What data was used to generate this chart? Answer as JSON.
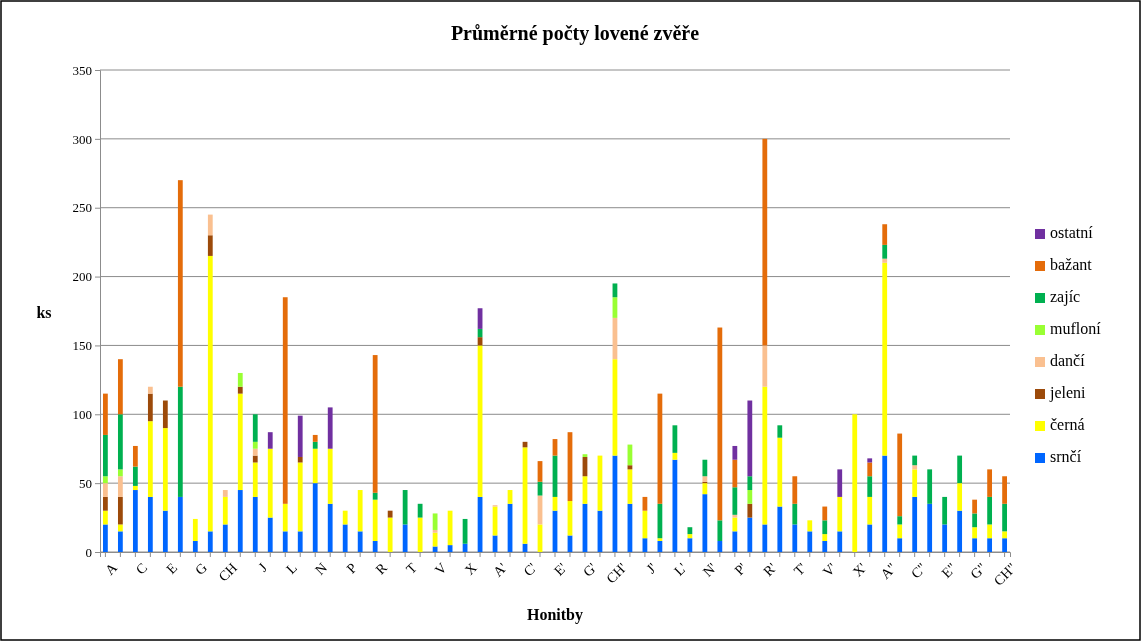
{
  "chart_data": {
    "type": "bar",
    "stacked": true,
    "title": "Průměrné počty lovené zvěře",
    "xlabel": "Honitby",
    "ylabel": "ks",
    "categories": [
      "A",
      null,
      "C",
      null,
      "E",
      null,
      "G",
      null,
      "CH",
      null,
      "J",
      null,
      "L",
      null,
      "N",
      null,
      "P",
      null,
      "R",
      null,
      "T",
      null,
      "V",
      null,
      "X",
      null,
      "A'",
      null,
      "C'",
      null,
      "E'",
      null,
      "G'",
      null,
      "CH'",
      null,
      "J'",
      null,
      "L'",
      null,
      "N'",
      null,
      "P'",
      null,
      "R'",
      null,
      "T'",
      null,
      "V'",
      null,
      "X'",
      null,
      "A\"",
      null,
      "C\"",
      null,
      "E\"",
      null,
      "G\"",
      null,
      "CH\""
    ],
    "series": [
      {
        "name": "srnčí",
        "color": "#0066ff",
        "values": [
          20,
          15,
          45,
          40,
          30,
          40,
          8,
          15,
          20,
          45,
          40,
          25,
          15,
          15,
          50,
          35,
          20,
          15,
          8,
          0,
          20,
          0,
          4,
          5,
          6,
          40,
          12,
          35,
          6,
          0,
          30,
          12,
          35,
          30,
          70,
          35,
          10,
          8,
          67,
          10,
          42,
          8,
          15,
          25,
          20,
          33,
          20,
          15,
          8,
          15,
          0,
          20,
          70,
          10,
          40,
          35,
          20,
          30,
          10,
          10,
          10
        ]
      },
      {
        "name": "černá",
        "color": "#ffff00",
        "values": [
          10,
          5,
          3,
          55,
          60,
          0,
          16,
          200,
          20,
          70,
          25,
          50,
          20,
          50,
          25,
          40,
          10,
          30,
          30,
          25,
          0,
          25,
          10,
          25,
          0,
          110,
          21,
          10,
          70,
          20,
          10,
          25,
          20,
          40,
          70,
          25,
          20,
          2,
          5,
          3,
          8,
          0,
          10,
          0,
          100,
          50,
          0,
          8,
          5,
          25,
          100,
          20,
          140,
          10,
          20,
          0,
          0,
          20,
          8,
          10,
          5
        ]
      },
      {
        "name": "jeleni",
        "color": "#9c4a0a",
        "values": [
          10,
          20,
          0,
          20,
          20,
          0,
          0,
          15,
          0,
          5,
          5,
          0,
          0,
          4,
          0,
          0,
          0,
          0,
          0,
          5,
          0,
          0,
          0,
          0,
          0,
          6,
          0,
          0,
          4,
          0,
          0,
          0,
          14,
          0,
          0,
          3,
          0,
          0,
          0,
          0,
          1,
          0,
          0,
          10,
          0,
          0,
          0,
          0,
          0,
          0,
          0,
          0,
          0,
          0,
          0,
          0,
          0,
          0,
          0,
          0,
          0
        ]
      },
      {
        "name": "dančí",
        "color": "#fac090",
        "values": [
          10,
          15,
          0,
          5,
          0,
          0,
          0,
          15,
          5,
          0,
          5,
          0,
          0,
          0,
          0,
          0,
          0,
          0,
          0,
          0,
          0,
          0,
          2,
          0,
          0,
          0,
          1,
          0,
          0,
          21,
          0,
          0,
          0,
          0,
          30,
          0,
          0,
          0,
          0,
          0,
          4,
          0,
          2,
          0,
          30,
          0,
          0,
          0,
          0,
          0,
          0,
          0,
          3,
          0,
          3,
          0,
          0,
          0,
          0,
          0,
          0
        ]
      },
      {
        "name": "mufloní",
        "color": "#99ff33",
        "values": [
          5,
          5,
          0,
          0,
          0,
          0,
          0,
          0,
          0,
          10,
          5,
          0,
          0,
          0,
          0,
          0,
          0,
          0,
          0,
          0,
          0,
          0,
          12,
          0,
          0,
          0,
          0,
          0,
          0,
          0,
          0,
          0,
          2,
          0,
          15,
          15,
          0,
          0,
          0,
          0,
          0,
          0,
          0,
          10,
          0,
          0,
          0,
          0,
          0,
          0,
          0,
          0,
          0,
          0,
          0,
          0,
          0,
          0,
          0,
          0,
          0
        ]
      },
      {
        "name": "zajíc",
        "color": "#00b050",
        "values": [
          30,
          40,
          14,
          0,
          0,
          80,
          0,
          0,
          0,
          0,
          20,
          0,
          0,
          0,
          5,
          0,
          0,
          0,
          5,
          0,
          25,
          10,
          0,
          0,
          18,
          6,
          0,
          0,
          0,
          10,
          30,
          0,
          0,
          0,
          10,
          0,
          0,
          25,
          20,
          5,
          12,
          15,
          20,
          10,
          0,
          9,
          15,
          0,
          10,
          0,
          0,
          15,
          10,
          6,
          7,
          25,
          20,
          20,
          10,
          20,
          20
        ]
      },
      {
        "name": "bažant",
        "color": "#e46c0a",
        "values": [
          30,
          40,
          15,
          0,
          0,
          150,
          0,
          0,
          0,
          0,
          0,
          0,
          150,
          0,
          5,
          0,
          0,
          0,
          100,
          0,
          0,
          0,
          0,
          0,
          0,
          0,
          0,
          0,
          0,
          15,
          12,
          50,
          0,
          0,
          0,
          0,
          10,
          80,
          0,
          0,
          0,
          140,
          20,
          0,
          150,
          0,
          20,
          0,
          10,
          0,
          0,
          10,
          15,
          60,
          0,
          0,
          0,
          0,
          10,
          20,
          20
        ]
      },
      {
        "name": "ostatní",
        "color": "#7030a0",
        "values": [
          0,
          0,
          0,
          0,
          0,
          0,
          0,
          0,
          0,
          0,
          0,
          12,
          0,
          30,
          0,
          30,
          0,
          0,
          0,
          0,
          0,
          0,
          0,
          0,
          0,
          15,
          0,
          0,
          0,
          0,
          0,
          0,
          0,
          0,
          0,
          0,
          0,
          0,
          0,
          0,
          0,
          0,
          10,
          55,
          0,
          0,
          0,
          0,
          0,
          20,
          0,
          3,
          0,
          0,
          0,
          0,
          0,
          0,
          0,
          0,
          0
        ]
      }
    ],
    "ylim": [
      0,
      350
    ],
    "yticks": [
      0,
      50,
      100,
      150,
      200,
      250,
      300,
      350
    ],
    "grid": "y",
    "legend": "right"
  }
}
